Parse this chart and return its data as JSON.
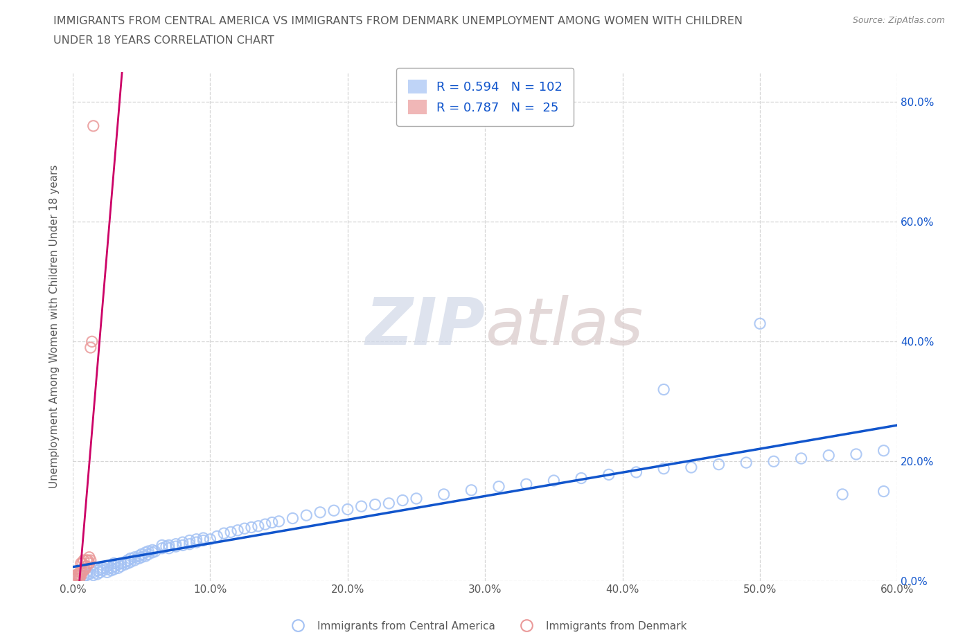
{
  "title_line1": "IMMIGRANTS FROM CENTRAL AMERICA VS IMMIGRANTS FROM DENMARK UNEMPLOYMENT AMONG WOMEN WITH CHILDREN",
  "title_line2": "UNDER 18 YEARS CORRELATION CHART",
  "source": "Source: ZipAtlas.com",
  "ylabel": "Unemployment Among Women with Children Under 18 years",
  "xlim": [
    0.0,
    0.6
  ],
  "ylim": [
    0.0,
    0.85
  ],
  "xticks": [
    0.0,
    0.1,
    0.2,
    0.3,
    0.4,
    0.5,
    0.6
  ],
  "xticklabels": [
    "0.0%",
    "10.0%",
    "20.0%",
    "30.0%",
    "40.0%",
    "50.0%",
    "60.0%"
  ],
  "ytick_positions": [
    0.0,
    0.2,
    0.4,
    0.6,
    0.8
  ],
  "yticklabels_right": [
    "0.0%",
    "20.0%",
    "40.0%",
    "60.0%",
    "80.0%"
  ],
  "R_blue": 0.594,
  "N_blue": 102,
  "R_pink": 0.787,
  "N_pink": 25,
  "blue_color": "#a4c2f4",
  "pink_color": "#ea9999",
  "blue_line_color": "#1155cc",
  "pink_line_color": "#cc0066",
  "watermark_zip": "ZIP",
  "watermark_atlas": "atlas",
  "legend_blue_label": "Immigrants from Central America",
  "legend_pink_label": "Immigrants from Denmark",
  "background_color": "#ffffff",
  "grid_color": "#cccccc",
  "title_color": "#595959",
  "axis_label_color": "#595959",
  "tick_color": "#595959",
  "right_tick_color": "#1155cc",
  "blue_x": [
    0.005,
    0.005,
    0.008,
    0.01,
    0.01,
    0.012,
    0.015,
    0.015,
    0.018,
    0.018,
    0.02,
    0.02,
    0.022,
    0.022,
    0.025,
    0.025,
    0.025,
    0.028,
    0.028,
    0.03,
    0.03,
    0.03,
    0.033,
    0.033,
    0.035,
    0.035,
    0.038,
    0.038,
    0.04,
    0.04,
    0.042,
    0.042,
    0.045,
    0.045,
    0.048,
    0.048,
    0.05,
    0.05,
    0.053,
    0.053,
    0.055,
    0.055,
    0.058,
    0.058,
    0.06,
    0.065,
    0.065,
    0.068,
    0.07,
    0.07,
    0.075,
    0.075,
    0.08,
    0.08,
    0.085,
    0.085,
    0.09,
    0.09,
    0.095,
    0.095,
    0.1,
    0.105,
    0.11,
    0.115,
    0.12,
    0.125,
    0.13,
    0.135,
    0.14,
    0.145,
    0.15,
    0.16,
    0.17,
    0.18,
    0.19,
    0.2,
    0.21,
    0.22,
    0.23,
    0.24,
    0.25,
    0.27,
    0.29,
    0.31,
    0.33,
    0.35,
    0.37,
    0.39,
    0.41,
    0.43,
    0.45,
    0.47,
    0.49,
    0.51,
    0.53,
    0.55,
    0.57,
    0.59,
    0.43,
    0.5,
    0.56,
    0.59
  ],
  "blue_y": [
    0.005,
    0.01,
    0.008,
    0.01,
    0.015,
    0.012,
    0.01,
    0.015,
    0.012,
    0.018,
    0.015,
    0.02,
    0.018,
    0.022,
    0.015,
    0.02,
    0.025,
    0.018,
    0.022,
    0.02,
    0.025,
    0.03,
    0.022,
    0.028,
    0.025,
    0.03,
    0.028,
    0.032,
    0.03,
    0.035,
    0.032,
    0.038,
    0.035,
    0.04,
    0.038,
    0.042,
    0.04,
    0.045,
    0.042,
    0.048,
    0.045,
    0.05,
    0.048,
    0.052,
    0.05,
    0.055,
    0.06,
    0.058,
    0.055,
    0.06,
    0.062,
    0.058,
    0.06,
    0.065,
    0.062,
    0.068,
    0.065,
    0.07,
    0.068,
    0.072,
    0.07,
    0.075,
    0.08,
    0.082,
    0.085,
    0.088,
    0.09,
    0.092,
    0.095,
    0.098,
    0.1,
    0.105,
    0.11,
    0.115,
    0.118,
    0.12,
    0.125,
    0.128,
    0.13,
    0.135,
    0.138,
    0.145,
    0.152,
    0.158,
    0.162,
    0.168,
    0.172,
    0.178,
    0.182,
    0.188,
    0.19,
    0.195,
    0.198,
    0.2,
    0.205,
    0.21,
    0.212,
    0.218,
    0.32,
    0.43,
    0.145,
    0.15
  ],
  "pink_x": [
    0.001,
    0.002,
    0.003,
    0.003,
    0.004,
    0.005,
    0.005,
    0.005,
    0.006,
    0.006,
    0.006,
    0.007,
    0.007,
    0.008,
    0.008,
    0.009,
    0.01,
    0.01,
    0.011,
    0.012,
    0.012,
    0.013,
    0.013,
    0.014,
    0.015
  ],
  "pink_y": [
    0.005,
    0.01,
    0.005,
    0.01,
    0.01,
    0.005,
    0.01,
    0.015,
    0.01,
    0.015,
    0.03,
    0.015,
    0.03,
    0.02,
    0.035,
    0.02,
    0.025,
    0.035,
    0.035,
    0.03,
    0.04,
    0.035,
    0.39,
    0.4,
    0.76
  ],
  "pink_trendline_x": [
    0.0,
    0.065
  ],
  "blue_trendline_x": [
    0.0,
    0.6
  ]
}
